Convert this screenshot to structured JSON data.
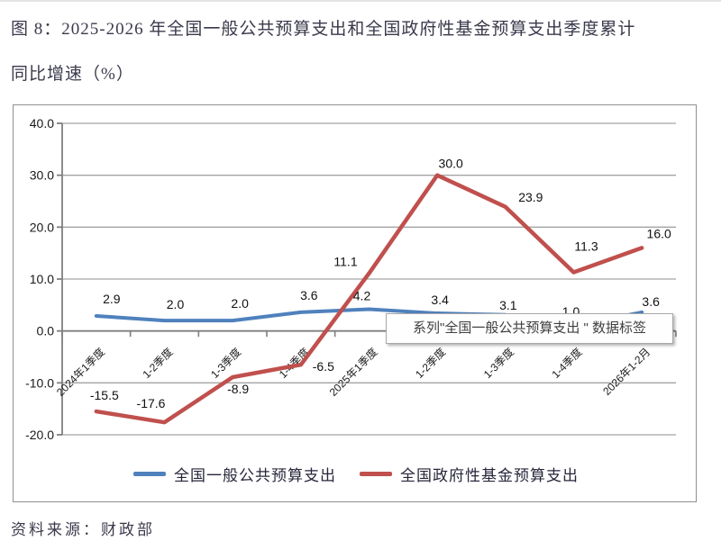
{
  "title": {
    "line1": "图 8：2025-2026 年全国一般公共预算支出和全国政府性基金预算支出季度累计",
    "line2": "同比增速（%）"
  },
  "tooltip": {
    "text": "系列\"全国一般公共预算支出 \" 数据标签"
  },
  "source": "资料来源：财政部",
  "colors": {
    "series_blue": "#4F81BD",
    "series_red": "#C0504D",
    "gridline": "#a3a3a3",
    "axis": "#7f7f7f",
    "chart_border": "#8f8f8f",
    "data_label": "#111111",
    "tick_label": "#1a1a1a"
  },
  "chart_data": {
    "type": "line",
    "title": "2025-2026 年全国一般公共预算支出和全国政府性基金预算支出季度累计同比增速（%）",
    "categories": [
      "2024年1季度",
      "1-2季度",
      "1-3季度",
      "1-4季度",
      "2025年1季度",
      "1-2季度",
      "1-3季度",
      "1-4季度",
      "2026年1-2月"
    ],
    "series": [
      {
        "name": "全国一般公共预算支出",
        "color_key": "series_blue",
        "values": [
          2.9,
          2.0,
          2.0,
          3.6,
          4.2,
          3.4,
          3.1,
          1.0,
          3.6
        ],
        "label_offsets": [
          [
            17,
            -19
          ],
          [
            12,
            -18
          ],
          [
            8,
            -19
          ],
          [
            9,
            -19
          ],
          [
            -8,
            -15
          ],
          [
            3,
            -15
          ],
          [
            3,
            -11
          ],
          [
            -3,
            -16
          ],
          [
            10,
            -12
          ]
        ]
      },
      {
        "name": "全国政府性基金预算支出",
        "color_key": "series_red",
        "values": [
          -15.5,
          -17.6,
          -8.9,
          -6.5,
          11.1,
          30.0,
          23.9,
          11.3,
          16.0
        ],
        "label_offsets": [
          [
            9,
            -18
          ],
          [
            -15,
            -21
          ],
          [
            6,
            13
          ],
          [
            25,
            2
          ],
          [
            -26,
            -13
          ],
          [
            15,
            -13
          ],
          [
            28,
            -11
          ],
          [
            14,
            -29
          ],
          [
            19,
            -16
          ]
        ]
      }
    ],
    "ylim": [
      -20,
      40
    ],
    "ytick_step": 10,
    "ytick_labels": [
      "40.0",
      "30.0",
      "20.0",
      "10.0",
      "0.0",
      "-10.0",
      "-20.0"
    ],
    "grid": true,
    "legend_position": "bottom",
    "xlabel": "",
    "ylabel": ""
  }
}
